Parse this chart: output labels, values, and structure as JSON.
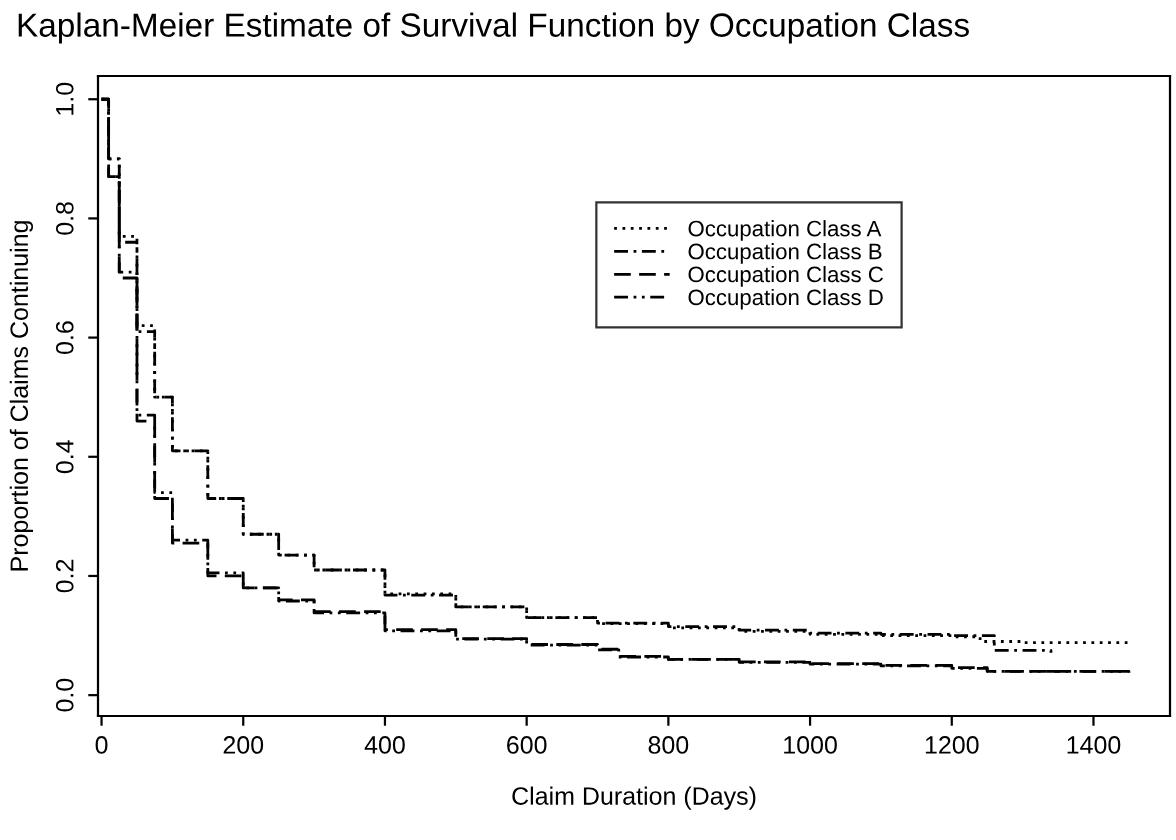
{
  "chart_data": {
    "type": "step",
    "title": "Kaplan-Meier Estimate of Survival Function by Occupation Class",
    "xlabel": "Claim Duration (Days)",
    "ylabel": "Proportion of Claims Continuing",
    "xlim": [
      -5,
      1508
    ],
    "ylim": [
      -0.035,
      1.039
    ],
    "xticks": [
      0,
      200,
      400,
      600,
      800,
      1000,
      1200,
      1400
    ],
    "yticks": [
      {
        "value": 0,
        "label": "0.0"
      },
      {
        "value": 0.2,
        "label": "0.2"
      },
      {
        "value": 0.4,
        "label": "0.4"
      },
      {
        "value": 0.6,
        "label": "0.6"
      },
      {
        "value": 0.8,
        "label": "0.8"
      },
      {
        "value": 1,
        "label": "1.0"
      }
    ],
    "grid": false,
    "legend": "top right",
    "marker": "none",
    "series": [
      {
        "name": "Occupation Class A",
        "color": "#000000",
        "line_style": "dotted",
        "x": [
          0,
          10,
          25,
          50,
          75,
          100,
          150,
          200,
          250,
          300,
          400,
          500,
          600,
          700,
          800,
          900,
          1000,
          1100,
          1200,
          1240,
          1300,
          1450
        ],
        "values": [
          1.0,
          0.9,
          0.77,
          0.62,
          0.5,
          0.41,
          0.33,
          0.27,
          0.235,
          0.21,
          0.17,
          0.148,
          0.13,
          0.12,
          0.113,
          0.107,
          0.102,
          0.1,
          0.098,
          0.09,
          0.088,
          0.088
        ]
      },
      {
        "name": "Occupation Class B",
        "color": "#000000",
        "line_style": "dashdot",
        "x": [
          0,
          10,
          25,
          50,
          75,
          100,
          150,
          200,
          250,
          300,
          400,
          500,
          600,
          700,
          800,
          900,
          1000,
          1100,
          1200,
          1260,
          1340
        ],
        "values": [
          1.0,
          0.9,
          0.76,
          0.61,
          0.5,
          0.41,
          0.33,
          0.27,
          0.235,
          0.21,
          0.168,
          0.148,
          0.13,
          0.121,
          0.115,
          0.109,
          0.104,
          0.102,
          0.1,
          0.075,
          0.071
        ]
      },
      {
        "name": "Occupation Class C",
        "color": "#000000",
        "line_style": "dashed",
        "x": [
          0,
          10,
          25,
          50,
          75,
          100,
          150,
          200,
          250,
          300,
          400,
          500,
          600,
          700,
          730,
          800,
          900,
          1000,
          1100,
          1200,
          1250,
          1450
        ],
        "values": [
          1.0,
          0.87,
          0.7,
          0.46,
          0.33,
          0.255,
          0.2,
          0.18,
          0.16,
          0.14,
          0.11,
          0.095,
          0.085,
          0.077,
          0.065,
          0.06,
          0.056,
          0.053,
          0.05,
          0.046,
          0.04,
          0.038
        ]
      },
      {
        "name": "Occupation Class D",
        "color": "#000000",
        "line_style": "dashdotdot",
        "x": [
          0,
          10,
          25,
          50,
          75,
          100,
          150,
          200,
          250,
          300,
          400,
          500,
          600,
          700,
          730,
          800,
          900,
          1000,
          1100,
          1200,
          1250,
          1450
        ],
        "values": [
          1.0,
          0.87,
          0.71,
          0.47,
          0.34,
          0.26,
          0.205,
          0.18,
          0.158,
          0.138,
          0.108,
          0.094,
          0.084,
          0.076,
          0.064,
          0.06,
          0.055,
          0.052,
          0.049,
          0.045,
          0.04,
          0.038
        ]
      }
    ]
  }
}
